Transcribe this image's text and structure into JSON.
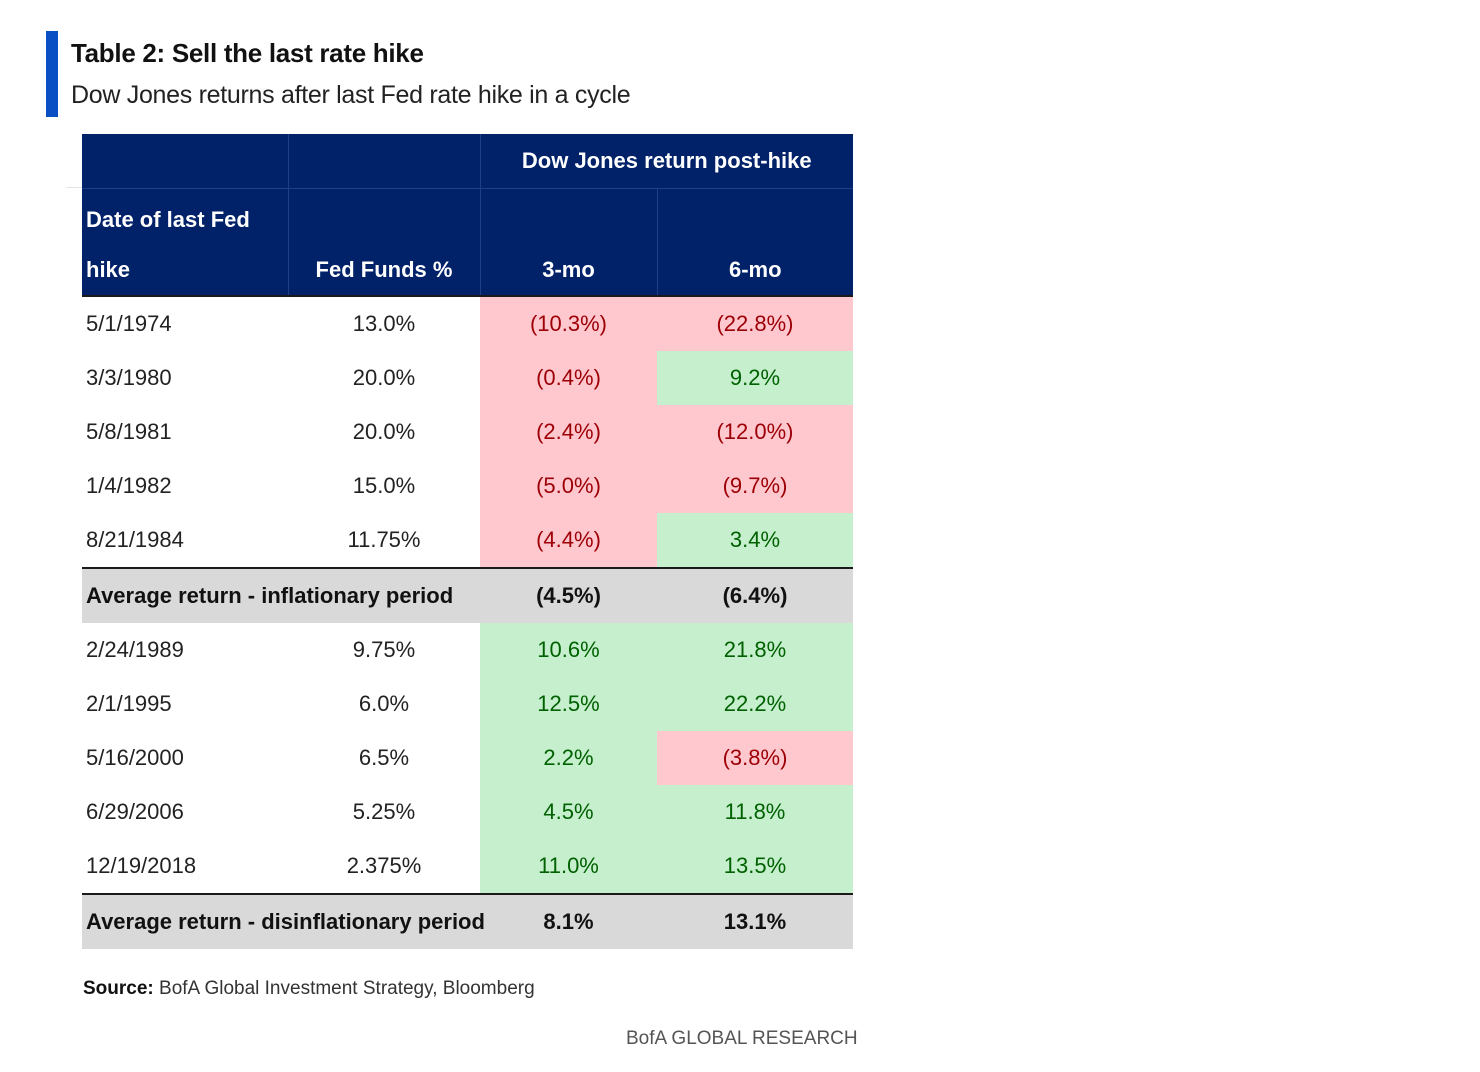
{
  "title": "Table 2: Sell the last rate hike",
  "subtitle": "Dow Jones returns after last Fed rate hike in a cycle",
  "colors": {
    "accent": "#0a4fc4",
    "header_bg": "#012169",
    "neg_bg": "#ffc7ce",
    "neg_text": "#9c0006",
    "pos_bg": "#c6efce",
    "pos_text": "#006100",
    "avg_bg": "#d9d9d9"
  },
  "chart_data": {
    "type": "table",
    "group_header": "Dow Jones return post-hike",
    "columns": [
      "Date of last Fed hike",
      "Fed Funds %",
      "3-mo",
      "6-mo"
    ],
    "column_lines": {
      "date_line1": "Date of last Fed",
      "date_line2": "hike"
    },
    "inflationary": [
      {
        "date": "5/1/1974",
        "ff": "13.0%",
        "m3": "(10.3%)",
        "m6": "(22.8%)",
        "m3_value": -10.3,
        "m6_value": -22.8
      },
      {
        "date": "3/3/1980",
        "ff": "20.0%",
        "m3": "(0.4%)",
        "m6": "9.2%",
        "m3_value": -0.4,
        "m6_value": 9.2
      },
      {
        "date": "5/8/1981",
        "ff": "20.0%",
        "m3": "(2.4%)",
        "m6": "(12.0%)",
        "m3_value": -2.4,
        "m6_value": -12.0
      },
      {
        "date": "1/4/1982",
        "ff": "15.0%",
        "m3": "(5.0%)",
        "m6": "(9.7%)",
        "m3_value": -5.0,
        "m6_value": -9.7
      },
      {
        "date": "8/21/1984",
        "ff": "11.75%",
        "m3": "(4.4%)",
        "m6": "3.4%",
        "m3_value": -4.4,
        "m6_value": 3.4
      }
    ],
    "avg_inflationary": {
      "label": "Average return - inflationary period",
      "m3": "(4.5%)",
      "m6": "(6.4%)"
    },
    "disinflationary": [
      {
        "date": "2/24/1989",
        "ff": "9.75%",
        "m3": "10.6%",
        "m6": "21.8%",
        "m3_value": 10.6,
        "m6_value": 21.8
      },
      {
        "date": "2/1/1995",
        "ff": "6.0%",
        "m3": "12.5%",
        "m6": "22.2%",
        "m3_value": 12.5,
        "m6_value": 22.2
      },
      {
        "date": "5/16/2000",
        "ff": "6.5%",
        "m3": "2.2%",
        "m6": "(3.8%)",
        "m3_value": 2.2,
        "m6_value": -3.8
      },
      {
        "date": "6/29/2006",
        "ff": "5.25%",
        "m3": "4.5%",
        "m6": "11.8%",
        "m3_value": 4.5,
        "m6_value": 11.8
      },
      {
        "date": "12/19/2018",
        "ff": "2.375%",
        "m3": "11.0%",
        "m6": "13.5%",
        "m3_value": 11.0,
        "m6_value": 13.5
      }
    ],
    "avg_disinflationary": {
      "label": "Average return - disinflationary period",
      "m3": "8.1%",
      "m6": "13.1%"
    }
  },
  "source": {
    "label": "Source:",
    "text": "BofA Global Investment Strategy, Bloomberg"
  },
  "footer": "BofA GLOBAL RESEARCH"
}
